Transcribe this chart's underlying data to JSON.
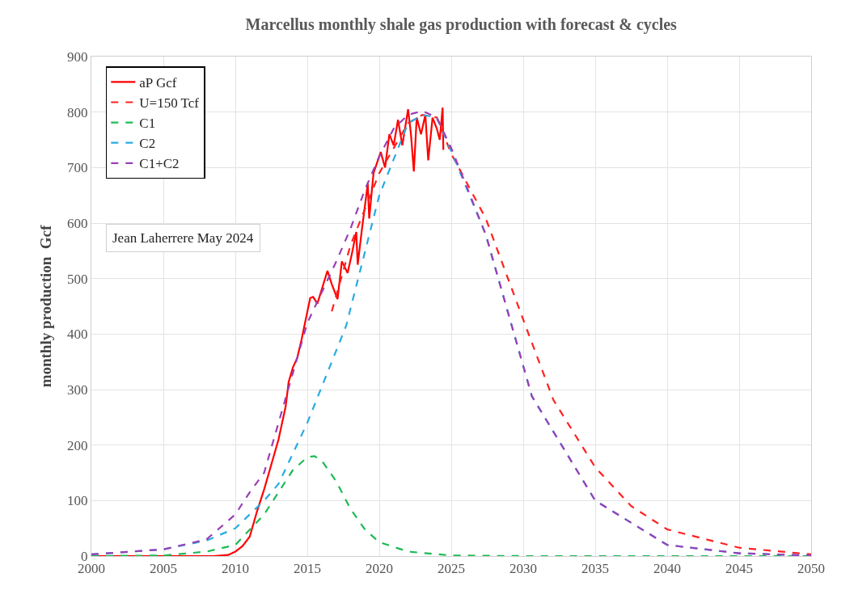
{
  "chart_data": {
    "type": "line",
    "title": "Marcellus monthly shale gas production with forecast & cycles",
    "ylabel": "monthly production  Gcf",
    "xlim": [
      2000,
      2050
    ],
    "xticks": [
      2000,
      2005,
      2010,
      2015,
      2020,
      2025,
      2030,
      2035,
      2040,
      2045,
      2050
    ],
    "ylim": [
      0,
      900
    ],
    "yticks": [
      0,
      100,
      200,
      300,
      400,
      500,
      600,
      700,
      800,
      900
    ],
    "grid": true,
    "legend": "top left",
    "marker": "none",
    "annotations": [
      "Jean Laherrere May 2024"
    ],
    "series": [
      {
        "name": "aP Gcf",
        "color": "#ff0000",
        "line_style": "solid",
        "x": [
          2000,
          2005,
          2008.5,
          2009.5,
          2010,
          2010.5,
          2011,
          2011.5,
          2012,
          2012.5,
          2013,
          2013.5,
          2013.7,
          2014,
          2014.3,
          2014.6,
          2014.8,
          2015,
          2015.2,
          2015.4,
          2015.7,
          2016,
          2016.4,
          2016.7,
          2017.1,
          2017.4,
          2017.8,
          2018.1,
          2018.4,
          2018.5,
          2018.8,
          2019.2,
          2019.3,
          2019.6,
          2020.1,
          2020.4,
          2020.7,
          2021,
          2021.3,
          2021.6,
          2022,
          2022.2,
          2022.4,
          2022.6,
          2022.9,
          2023.2,
          2023.4,
          2023.7,
          2024,
          2024.2,
          2024.4,
          2024.45
        ],
        "values": [
          0,
          0,
          0,
          2,
          8,
          18,
          35,
          80,
          120,
          165,
          210,
          270,
          313,
          340,
          357,
          390,
          415,
          440,
          465,
          467,
          455,
          480,
          514,
          490,
          463,
          531,
          510,
          545,
          584,
          525,
          590,
          671,
          608,
          690,
          728,
          700,
          760,
          740,
          786,
          740,
          805,
          760,
          693,
          790,
          760,
          795,
          713,
          790,
          770,
          750,
          808,
          732
        ]
      },
      {
        "name": "U=150 Tcf",
        "color": "#ff2020",
        "line_style": "dashed",
        "x": [
          2016.7,
          2018,
          2020,
          2022,
          2023,
          2024,
          2025,
          2027.4,
          2030.2,
          2032.1,
          2035,
          2037.5,
          2040,
          2045,
          2050
        ],
        "values": [
          441,
          560,
          690,
          780,
          795,
          790,
          725,
          608,
          412,
          281,
          160,
          90,
          48,
          15,
          3
        ]
      },
      {
        "name": "C1",
        "color": "#1db954",
        "line_style": "dashed",
        "x": [
          2000,
          2005,
          2008,
          2010,
          2012,
          2013,
          2014,
          2015,
          2015.5,
          2016,
          2017,
          2018,
          2019,
          2020,
          2022,
          2025,
          2030,
          2040,
          2050
        ],
        "values": [
          0,
          1,
          8,
          20,
          75,
          115,
          155,
          178,
          180,
          172,
          135,
          85,
          48,
          25,
          8,
          1,
          0,
          0,
          0
        ]
      },
      {
        "name": "C2",
        "color": "#29abe2",
        "line_style": "dashed",
        "x": [
          2000,
          2005,
          2008,
          2010,
          2012,
          2013,
          2015,
          2017.7,
          2020,
          2022,
          2023,
          2024,
          2025,
          2027.4,
          2030.6,
          2035,
          2040,
          2045,
          2050
        ],
        "values": [
          3,
          12,
          28,
          50,
          100,
          130,
          240,
          415,
          650,
          780,
          795,
          790,
          730,
          579,
          288,
          100,
          20,
          5,
          1
        ]
      },
      {
        "name": "C1+C2",
        "color": "#9b3fb5",
        "line_style": "dashed",
        "x": [
          2000,
          2005,
          2008,
          2010,
          2011,
          2012,
          2013,
          2014,
          2015,
          2016,
          2017,
          2018,
          2019,
          2020,
          2021,
          2022,
          2023,
          2024,
          2025,
          2027.4,
          2030.6,
          2035,
          2040,
          2045,
          2050
        ],
        "values": [
          3,
          12,
          30,
          75,
          115,
          150,
          240,
          330,
          420,
          475,
          530,
          590,
          660,
          720,
          770,
          795,
          802,
          790,
          735,
          579,
          288,
          100,
          20,
          5,
          1
        ]
      }
    ]
  }
}
